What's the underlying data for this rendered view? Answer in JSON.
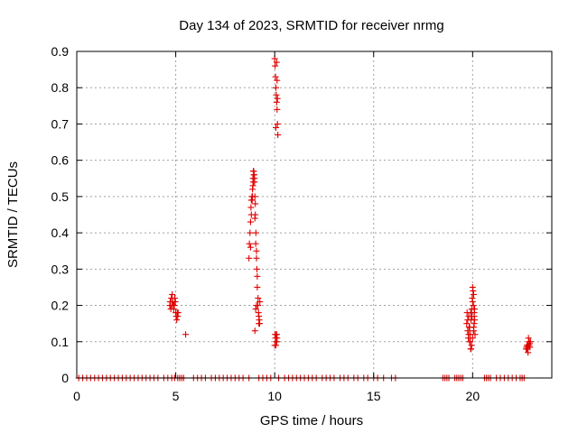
{
  "chart_data": {
    "type": "scatter",
    "title": "Day 134 of 2023, SRMTID for receiver nrmg",
    "xlabel": "GPS time / hours",
    "ylabel": "SRMTID / TECUs",
    "xlim": [
      0,
      24
    ],
    "ylim": [
      0,
      0.9
    ],
    "xticks": [
      0,
      5,
      10,
      15,
      20
    ],
    "yticks": [
      0,
      0.1,
      0.2,
      0.3,
      0.4,
      0.5,
      0.6,
      0.7,
      0.8,
      0.9
    ],
    "xtick_labels": [
      "0",
      "5",
      "10",
      "15",
      "20"
    ],
    "ytick_labels": [
      "0",
      "0.1",
      "0.2",
      "0.3",
      "0.4",
      "0.5",
      "0.6",
      "0.7",
      "0.8",
      "0.9"
    ],
    "grid": true,
    "marker": "+",
    "color": "#e00000",
    "series": [
      {
        "x": [
          0.1,
          0.3,
          0.5,
          0.7,
          0.9,
          1.1,
          1.3,
          1.5,
          1.7,
          1.9,
          2.1,
          2.3,
          2.5,
          2.7,
          2.9,
          3.1,
          3.3,
          3.5,
          3.7,
          3.9,
          4.1,
          4.4,
          4.6,
          4.8,
          4.95,
          5.1,
          5.2,
          5.3,
          5.4,
          5.9,
          6.1,
          6.3,
          6.5,
          6.8,
          7.0,
          7.2,
          7.4,
          7.6,
          7.8,
          8.0,
          8.2,
          8.4,
          8.7,
          9.2,
          9.4,
          9.6,
          9.8,
          10.2,
          10.5,
          10.7,
          10.9,
          11.1,
          11.3,
          11.5,
          11.7,
          11.9,
          12.1,
          12.4,
          12.6,
          12.8,
          13.0,
          13.3,
          13.5,
          13.7,
          14.0,
          14.2,
          14.5,
          14.7,
          15.0,
          15.2,
          15.5,
          15.9,
          16.1,
          18.5,
          18.6,
          18.7,
          18.8,
          19.1,
          19.2,
          19.3,
          19.4,
          19.5,
          20.6,
          20.7,
          20.8,
          20.9,
          21.2,
          21.4,
          21.6,
          21.8,
          22.0,
          22.2,
          22.4,
          22.5,
          22.6
        ],
        "y": [
          0,
          0,
          0,
          0,
          0,
          0,
          0,
          0,
          0,
          0,
          0,
          0,
          0,
          0,
          0,
          0,
          0,
          0,
          0,
          0,
          0,
          0,
          0,
          0,
          0,
          0,
          0,
          0,
          0,
          0,
          0,
          0,
          0,
          0,
          0,
          0,
          0,
          0,
          0,
          0,
          0,
          0,
          0,
          0,
          0,
          0,
          0,
          0,
          0,
          0,
          0,
          0,
          0,
          0,
          0,
          0,
          0,
          0,
          0,
          0,
          0,
          0,
          0,
          0,
          0,
          0,
          0,
          0,
          0,
          0,
          0,
          0,
          0,
          0,
          0,
          0,
          0,
          0,
          0,
          0,
          0,
          0,
          0,
          0,
          0,
          0,
          0,
          0,
          0,
          0,
          0,
          0,
          0,
          0,
          0
        ]
      },
      {
        "x": [
          4.7,
          4.72,
          4.75,
          4.78,
          4.8,
          4.82,
          4.85,
          4.88,
          4.9,
          4.93,
          4.95,
          4.98,
          5.0,
          5.02,
          5.05,
          5.08,
          5.1,
          5.12,
          5.5
        ],
        "y": [
          0.2,
          0.21,
          0.19,
          0.22,
          0.2,
          0.23,
          0.21,
          0.2,
          0.19,
          0.2,
          0.22,
          0.21,
          0.18,
          0.17,
          0.16,
          0.18,
          0.17,
          0.18,
          0.12
        ]
      },
      {
        "x": [
          8.7,
          8.72,
          8.75,
          8.78,
          8.8,
          8.82,
          8.85,
          8.88,
          8.9,
          8.92,
          8.95,
          8.98,
          9.0,
          9.02,
          9.05,
          9.08,
          9.1,
          9.12,
          9.15,
          9.18,
          9.2,
          9.22,
          9.25,
          8.78,
          8.82,
          8.86,
          8.9,
          8.94,
          8.98,
          9.02,
          8.84,
          8.88,
          8.92,
          8.96,
          9.0,
          9.04,
          9.08,
          9.12,
          9.16,
          9.2,
          9.24,
          9.0,
          9.04,
          9.08
        ],
        "y": [
          0.33,
          0.37,
          0.4,
          0.43,
          0.47,
          0.49,
          0.5,
          0.52,
          0.55,
          0.57,
          0.56,
          0.55,
          0.5,
          0.45,
          0.4,
          0.35,
          0.3,
          0.25,
          0.2,
          0.18,
          0.15,
          0.16,
          0.21,
          0.36,
          0.45,
          0.49,
          0.53,
          0.57,
          0.54,
          0.48,
          0.49,
          0.5,
          0.54,
          0.56,
          0.44,
          0.37,
          0.33,
          0.28,
          0.22,
          0.17,
          0.15,
          0.13,
          0.19,
          0.2
        ]
      },
      {
        "x": [
          10.0,
          10.02,
          10.04,
          10.06,
          10.08,
          10.1,
          10.12,
          10.14,
          10.16,
          10.1,
          10.12,
          10.14,
          10.06,
          10.08,
          10.1,
          10.0,
          10.02,
          10.04,
          10.06,
          10.08,
          10.1,
          10.12
        ],
        "y": [
          0.88,
          0.86,
          0.83,
          0.8,
          0.78,
          0.76,
          0.74,
          0.7,
          0.67,
          0.87,
          0.82,
          0.77,
          0.69,
          0.12,
          0.1,
          0.09,
          0.12,
          0.11,
          0.09,
          0.1,
          0.12,
          0.11
        ]
      },
      {
        "x": [
          19.7,
          19.72,
          19.75,
          19.78,
          19.8,
          19.82,
          19.85,
          19.88,
          19.9,
          19.92,
          19.95,
          19.98,
          20.0,
          20.02,
          20.05,
          20.08,
          20.1,
          20.12,
          19.75,
          19.8,
          19.85,
          19.9,
          19.95,
          20.0,
          20.05,
          20.08,
          20.1,
          19.88,
          19.92,
          19.96,
          20.0,
          20.04,
          20.06,
          20.08
        ],
        "y": [
          0.15,
          0.18,
          0.13,
          0.11,
          0.17,
          0.14,
          0.1,
          0.12,
          0.08,
          0.16,
          0.19,
          0.22,
          0.25,
          0.24,
          0.23,
          0.17,
          0.19,
          0.12,
          0.16,
          0.12,
          0.14,
          0.18,
          0.09,
          0.21,
          0.13,
          0.15,
          0.16,
          0.1,
          0.08,
          0.17,
          0.11,
          0.2,
          0.14,
          0.18
        ]
      },
      {
        "x": [
          22.7,
          22.72,
          22.75,
          22.78,
          22.8,
          22.82,
          22.85,
          22.88,
          22.9,
          22.92,
          22.75,
          22.8,
          22.85
        ],
        "y": [
          0.08,
          0.085,
          0.08,
          0.09,
          0.085,
          0.11,
          0.09,
          0.095,
          0.085,
          0.1,
          0.09,
          0.07,
          0.1
        ]
      }
    ]
  }
}
